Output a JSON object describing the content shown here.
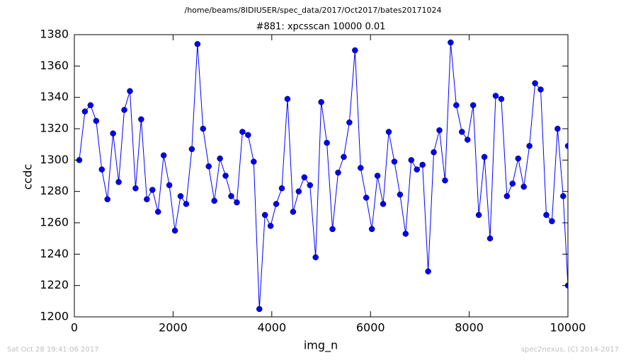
{
  "chart_data": {
    "type": "line",
    "suptitle": "/home/beams/8IDIUSER/spec_data/2017/Oct2017/bates20171024",
    "title": "#881: xpcsscan 10000 0.01",
    "xlabel": "img_n",
    "ylabel": "ccdc",
    "footer_left": "Sat Oct 28 19:41:06 2017",
    "footer_right": "spec2nexus, (C) 2014-2017",
    "xlim": [
      0,
      10000
    ],
    "ylim": [
      1200,
      1380
    ],
    "xticks": [
      0,
      2000,
      4000,
      6000,
      8000,
      10000
    ],
    "yticks": [
      1200,
      1220,
      1240,
      1260,
      1280,
      1300,
      1320,
      1340,
      1360,
      1380
    ],
    "x": [
      100,
      214,
      328,
      442,
      556,
      670,
      784,
      898,
      1012,
      1126,
      1240,
      1354,
      1468,
      1582,
      1696,
      1810,
      1924,
      2038,
      2152,
      2266,
      2380,
      2494,
      2608,
      2722,
      2836,
      2950,
      3064,
      3178,
      3292,
      3406,
      3520,
      3634,
      3748,
      3862,
      3976,
      4090,
      4204,
      4318,
      4432,
      4546,
      4660,
      4774,
      4888,
      5002,
      5116,
      5230,
      5344,
      5458,
      5572,
      5686,
      5800,
      5914,
      6028,
      6142,
      6256,
      6370,
      6484,
      6598,
      6712,
      6826,
      6940,
      7054,
      7168,
      7282,
      7396,
      7510,
      7624,
      7738,
      7852,
      7966,
      8080,
      8194,
      8308,
      8422,
      8536,
      8650,
      8764,
      8878,
      8992,
      9106,
      9220,
      9334,
      9448,
      9562,
      9676,
      9790,
      9904,
      10000,
      10000
    ],
    "series": [
      {
        "color": "#0000ff",
        "values": [
          1300,
          1331,
          1335,
          1325,
          1294,
          1275,
          1317,
          1286,
          1332,
          1344,
          1282,
          1326,
          1275,
          1281,
          1267,
          1303,
          1284,
          1255,
          1277,
          1272,
          1307,
          1374,
          1320,
          1296,
          1274,
          1301,
          1290,
          1277,
          1273,
          1318,
          1316,
          1299,
          1205,
          1265,
          1258,
          1272,
          1282,
          1339,
          1267,
          1280,
          1289,
          1284,
          1238,
          1337,
          1311,
          1256,
          1292,
          1302,
          1324,
          1370,
          1295,
          1276,
          1256,
          1290,
          1272,
          1318,
          1299,
          1278,
          1253,
          1300,
          1294,
          1297,
          1229,
          1305,
          1319,
          1287,
          1375,
          1335,
          1318,
          1313,
          1335,
          1265,
          1302,
          1250,
          1341,
          1339,
          1277,
          1285,
          1301,
          1283,
          1309,
          1349,
          1345,
          1265,
          1261,
          1320,
          1277,
          1220,
          1309
        ]
      }
    ]
  }
}
